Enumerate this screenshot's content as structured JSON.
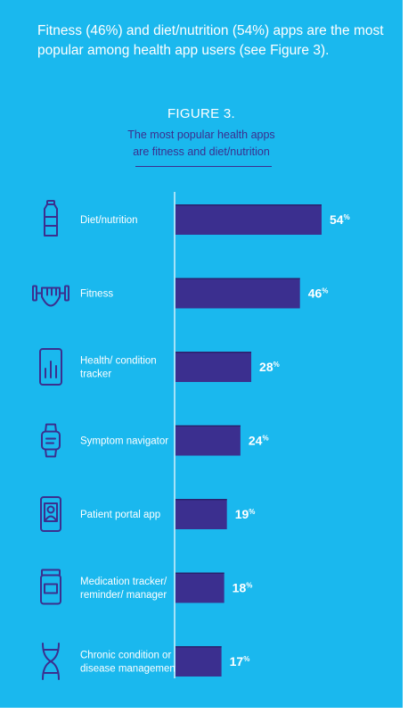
{
  "headline": "Fitness (46%) and diet/nutrition (54%) apps are the most popular among health app users (see Figure 3).",
  "figure": {
    "label": "FIGURE 3.",
    "subtitle_line1": "The most popular health apps",
    "subtitle_line2": "are fitness and diet/nutrition"
  },
  "colors": {
    "background": "#1ab8ee",
    "bar": "#3b2f8f",
    "text": "#ffffff"
  },
  "chart_data": {
    "type": "bar",
    "orientation": "horizontal",
    "title": "",
    "xlabel": "",
    "ylabel": "",
    "xlim": [
      0,
      54
    ],
    "grid": false,
    "legend": "none",
    "unit": "%",
    "categories": [
      [
        "Diet/nutrition"
      ],
      [
        "Fitness"
      ],
      [
        "Health/ condition",
        "tracker"
      ],
      [
        "Symptom navigator"
      ],
      [
        "Patient portal app"
      ],
      [
        "Medication tracker/",
        "reminder/ manager"
      ],
      [
        "Chronic condition or",
        "disease management"
      ]
    ],
    "icons": [
      "water-bottle-icon",
      "dumbbell-icon",
      "tablet-chart-icon",
      "smartwatch-icon",
      "phone-profile-icon",
      "pill-bottle-icon",
      "dna-icon"
    ],
    "values": [
      54,
      46,
      28,
      24,
      19,
      18,
      17
    ]
  }
}
